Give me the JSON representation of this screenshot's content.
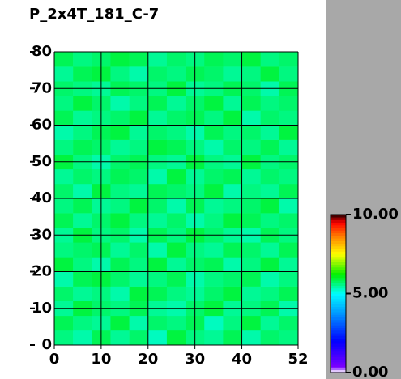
{
  "chart_data": {
    "type": "heatmap",
    "title": "P_2x4T_181_C-7",
    "xlim": [
      0,
      52
    ],
    "ylim": [
      0,
      80
    ],
    "xticks": [
      0,
      10,
      20,
      30,
      40,
      52
    ],
    "yticks": [
      0,
      10,
      20,
      30,
      40,
      50,
      60,
      70,
      80
    ],
    "grid": true,
    "zlim": [
      0,
      10
    ],
    "zticks": [
      {
        "value": 0,
        "label": "0.00"
      },
      {
        "value": 5,
        "label": "5.00"
      },
      {
        "value": 10,
        "label": "10.00"
      }
    ],
    "z": [
      [
        5.6,
        5.4,
        5.8,
        5.5,
        5.7,
        5.3,
        5.9,
        5.6,
        5.5,
        5.8,
        5.4,
        5.7,
        5.6
      ],
      [
        5.8,
        5.6,
        5.5,
        5.9,
        5.4,
        5.7,
        5.6,
        5.8,
        5.3,
        5.6,
        5.9,
        5.5,
        5.7
      ],
      [
        5.5,
        5.9,
        5.7,
        5.6,
        5.8,
        5.5,
        5.4,
        5.7,
        5.9,
        5.5,
        5.6,
        5.8,
        5.4
      ],
      [
        5.7,
        5.5,
        5.6,
        5.4,
        5.9,
        5.8,
        5.6,
        5.5,
        5.7,
        5.9,
        5.5,
        5.6,
        5.8
      ],
      [
        5.4,
        5.8,
        5.9,
        5.7,
        5.5,
        5.6,
        5.8,
        5.4,
        5.6,
        5.7,
        5.8,
        5.4,
        5.6
      ],
      [
        5.9,
        5.6,
        5.4,
        5.8,
        5.6,
        5.9,
        5.5,
        5.7,
        5.8,
        5.4,
        5.6,
        5.9,
        5.5
      ],
      [
        5.6,
        5.7,
        5.8,
        5.5,
        5.7,
        5.4,
        5.9,
        5.6,
        5.5,
        5.8,
        5.7,
        5.5,
        5.8
      ],
      [
        5.5,
        5.9,
        5.6,
        5.7,
        5.4,
        5.8,
        5.6,
        5.9,
        5.7,
        5.5,
        5.4,
        5.8,
        5.6
      ],
      [
        5.8,
        5.5,
        5.7,
        5.9,
        5.6,
        5.5,
        5.7,
        5.4,
        5.6,
        5.9,
        5.8,
        5.6,
        5.7
      ],
      [
        5.6,
        5.8,
        5.5,
        5.6,
        5.9,
        5.7,
        5.4,
        5.8,
        5.5,
        5.6,
        5.7,
        5.9,
        5.4
      ],
      [
        5.7,
        5.4,
        5.9,
        5.6,
        5.5,
        5.8,
        5.7,
        5.6,
        5.9,
        5.4,
        5.6,
        5.5,
        5.8
      ],
      [
        5.5,
        5.7,
        5.6,
        5.8,
        5.7,
        5.4,
        5.9,
        5.5,
        5.7,
        5.8,
        5.5,
        5.7,
        5.6
      ],
      [
        5.9,
        5.6,
        5.4,
        5.7,
        5.8,
        5.6,
        5.5,
        5.9,
        5.6,
        5.5,
        5.9,
        5.6,
        5.7
      ],
      [
        5.6,
        5.8,
        5.7,
        5.5,
        5.6,
        5.9,
        5.8,
        5.6,
        5.4,
        5.7,
        5.6,
        5.8,
        5.5
      ],
      [
        5.4,
        5.6,
        5.8,
        5.9,
        5.5,
        5.7,
        5.6,
        5.4,
        5.8,
        5.6,
        5.7,
        5.5,
        5.9
      ],
      [
        5.8,
        5.5,
        5.6,
        5.7,
        5.9,
        5.5,
        5.7,
        5.8,
        5.6,
        5.9,
        5.4,
        5.7,
        5.6
      ],
      [
        5.6,
        5.9,
        5.7,
        5.4,
        5.6,
        5.8,
        5.5,
        5.7,
        5.9,
        5.5,
        5.8,
        5.6,
        5.7
      ],
      [
        5.7,
        5.6,
        5.5,
        5.8,
        5.7,
        5.6,
        5.9,
        5.5,
        5.6,
        5.8,
        5.7,
        5.4,
        5.8
      ],
      [
        5.5,
        5.8,
        5.9,
        5.6,
        5.4,
        5.7,
        5.6,
        5.8,
        5.7,
        5.5,
        5.6,
        5.9,
        5.6
      ],
      [
        5.8,
        5.6,
        5.7,
        5.9,
        5.8,
        5.5,
        5.7,
        5.6,
        5.8,
        5.7,
        5.9,
        5.6,
        5.7
      ]
    ]
  }
}
